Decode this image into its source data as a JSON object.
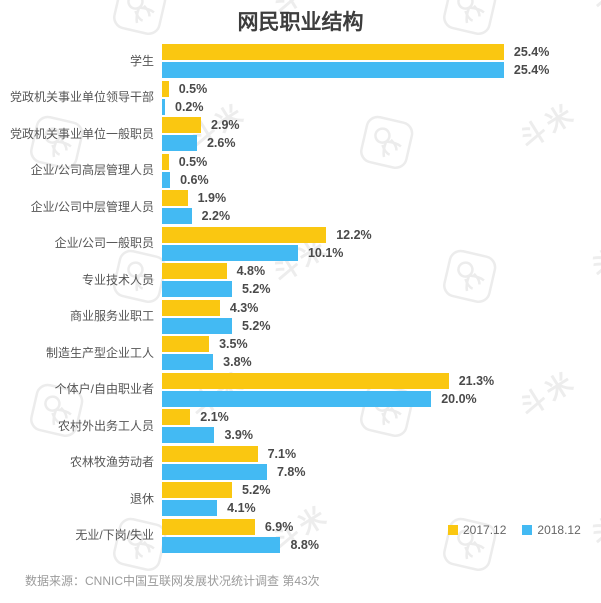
{
  "page": {
    "source_note": "数据来源：CNNIC中国互联网发展状况统计调查  第43次",
    "watermark_text": "斗米"
  },
  "chart_data": {
    "type": "bar",
    "orientation": "horizontal",
    "title": "网民职业结构",
    "value_suffix": "%",
    "xlim": [
      0,
      26
    ],
    "grid": false,
    "legend_position": "bottom-right",
    "categories": [
      "学生",
      "党政机关事业单位领导干部",
      "党政机关事业单位一般职员",
      "企业/公司高层管理人员",
      "企业/公司中层管理人员",
      "企业/公司一般职员",
      "专业技术人员",
      "商业服务业职工",
      "制造生产型企业工人",
      "个体户/自由职业者",
      "农村外出务工人员",
      "农林牧渔劳动者",
      "退休",
      "无业/下岗/失业"
    ],
    "series": [
      {
        "name": "2017.12",
        "color": "#FAC711",
        "values": [
          25.4,
          0.5,
          2.9,
          0.5,
          1.9,
          12.2,
          4.8,
          4.3,
          3.5,
          21.3,
          2.1,
          7.1,
          5.2,
          6.9
        ]
      },
      {
        "name": "2018.12",
        "color": "#43BAF3",
        "values": [
          25.4,
          0.2,
          2.6,
          0.6,
          2.2,
          10.1,
          5.2,
          5.2,
          3.8,
          20.0,
          3.9,
          7.8,
          4.1,
          8.8
        ]
      }
    ]
  }
}
